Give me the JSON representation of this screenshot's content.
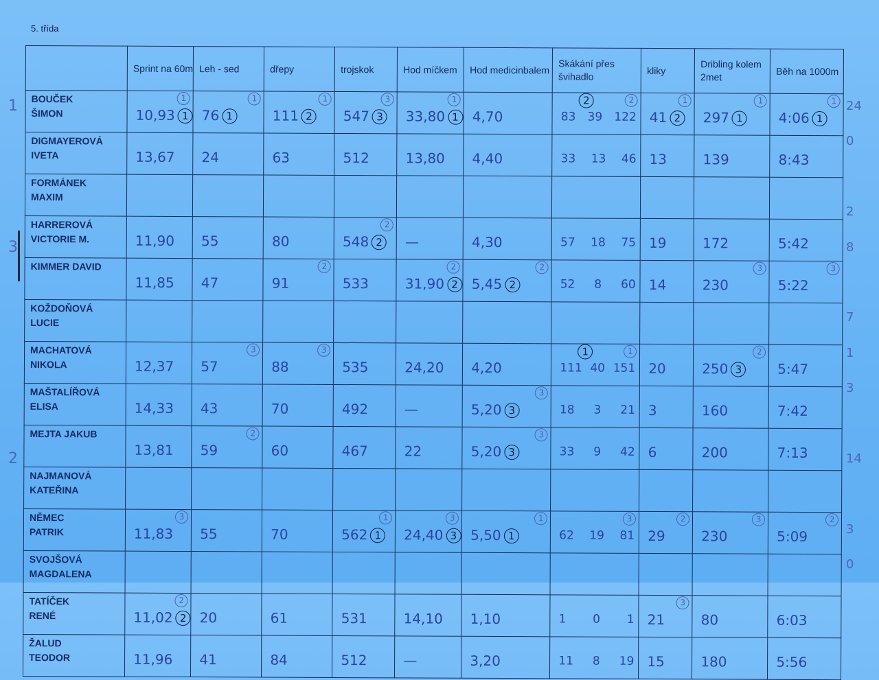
{
  "title": "5. třída",
  "colors": {
    "paper": "#6db8f6",
    "ink": "#2b44a0",
    "grid": "#1b2c5c"
  },
  "headers": [
    "",
    "Sprint na 60m",
    "Leh - sed",
    "dřepy",
    "trojskok",
    "Hod míčkem",
    "Hod medicinbalem",
    "Skákání přes švihadlo",
    "kliky",
    "Dribling kolem 2met",
    "Běh na 1000m"
  ],
  "rows": [
    {
      "name": [
        "BOUČEK",
        "ŠIMON"
      ],
      "side": "1",
      "total": "24",
      "cells": [
        {
          "v": "10,93",
          "c": "1",
          "s": "1"
        },
        {
          "v": "76",
          "c": "1",
          "s": "1"
        },
        {
          "v": "111",
          "c": "2",
          "s": "1"
        },
        {
          "v": "547",
          "c": "3",
          "s": "3"
        },
        {
          "v": "33,80",
          "c": "1",
          "s": "1"
        },
        {
          "v": "4,70"
        },
        {
          "parts": [
            "83",
            "39",
            "122"
          ],
          "c": "2",
          "s": "2"
        },
        {
          "v": "41",
          "c": "2",
          "s": "1"
        },
        {
          "v": "297",
          "c": "1",
          "s": "1"
        },
        {
          "v": "4:06",
          "c": "1",
          "s": "1"
        }
      ]
    },
    {
      "name": [
        "DIGMAYEROVÁ",
        "IVETA"
      ],
      "total": "0",
      "cells": [
        {
          "v": "13,67"
        },
        {
          "v": "24"
        },
        {
          "v": "63"
        },
        {
          "v": "512"
        },
        {
          "v": "13,80"
        },
        {
          "v": "4,40"
        },
        {
          "parts": [
            "33",
            "13",
            "46"
          ]
        },
        {
          "v": "13"
        },
        {
          "v": "139"
        },
        {
          "v": "8:43"
        }
      ]
    },
    {
      "name": [
        "FORMÁNEK",
        "MAXIM"
      ],
      "cells": [
        {},
        {},
        {},
        {},
        {},
        {},
        {},
        {},
        {},
        {}
      ]
    },
    {
      "name": [
        "HARREROVÁ",
        "VICTORIE M."
      ],
      "total": "2",
      "cells": [
        {
          "v": "11,90"
        },
        {
          "v": "55"
        },
        {
          "v": "80"
        },
        {
          "v": "548",
          "c": "2",
          "s": "2"
        },
        {
          "v": "—"
        },
        {
          "v": "4,30"
        },
        {
          "parts": [
            "57",
            "18",
            "75"
          ]
        },
        {
          "v": "19"
        },
        {
          "v": "172"
        },
        {
          "v": "5:42"
        }
      ]
    },
    {
      "name": [
        "KIMMER DAVID",
        ""
      ],
      "side": "3",
      "total": "8",
      "cells": [
        {
          "v": "11,85"
        },
        {
          "v": "47"
        },
        {
          "v": "91",
          "s": "2"
        },
        {
          "v": "533"
        },
        {
          "v": "31,90",
          "c": "2",
          "s": "2"
        },
        {
          "v": "5,45",
          "c": "2",
          "s": "2"
        },
        {
          "parts": [
            "52",
            "8",
            "60"
          ]
        },
        {
          "v": "14"
        },
        {
          "v": "230",
          "s": "3"
        },
        {
          "v": "5:22",
          "s": "3"
        }
      ]
    },
    {
      "name": [
        "KOŽDOŇOVÁ",
        "LUCIE"
      ],
      "cells": [
        {},
        {},
        {},
        {},
        {},
        {},
        {},
        {},
        {},
        {}
      ]
    },
    {
      "name": [
        "MACHATOVÁ",
        "NIKOLA"
      ],
      "total": "7",
      "cells": [
        {
          "v": "12,37"
        },
        {
          "v": "57",
          "s": "3"
        },
        {
          "v": "88",
          "s": "3"
        },
        {
          "v": "535"
        },
        {
          "v": "24,20"
        },
        {
          "v": "4,20"
        },
        {
          "parts": [
            "111",
            "40",
            "151"
          ],
          "c": "1",
          "s": "1"
        },
        {
          "v": "20"
        },
        {
          "v": "250",
          "c": "3",
          "s": "2"
        },
        {
          "v": "5:47"
        }
      ]
    },
    {
      "name": [
        "MAŠTALÍŘOVÁ",
        "ELISA"
      ],
      "total": "1",
      "cells": [
        {
          "v": "14,33"
        },
        {
          "v": "43"
        },
        {
          "v": "70"
        },
        {
          "v": "492"
        },
        {
          "v": "—"
        },
        {
          "v": "5,20",
          "c": "3",
          "s": "3"
        },
        {
          "parts": [
            "18",
            "3",
            "21"
          ]
        },
        {
          "v": "3"
        },
        {
          "v": "160"
        },
        {
          "v": "7:42"
        }
      ]
    },
    {
      "name": [
        "MEJTA JAKUB",
        ""
      ],
      "total": "3",
      "cells": [
        {
          "v": "13,81"
        },
        {
          "v": "59",
          "s": "2"
        },
        {
          "v": "60"
        },
        {
          "v": "467"
        },
        {
          "v": "22"
        },
        {
          "v": "5,20",
          "c": "3",
          "s": "3"
        },
        {
          "parts": [
            "33",
            "9",
            "42"
          ]
        },
        {
          "v": "6"
        },
        {
          "v": "200"
        },
        {
          "v": "7:13"
        }
      ]
    },
    {
      "name": [
        "NAJMANOVÁ",
        "KATEŘINA"
      ],
      "cells": [
        {},
        {},
        {},
        {},
        {},
        {},
        {},
        {},
        {},
        {}
      ]
    },
    {
      "name": [
        "NĚMEC",
        "PATRIK"
      ],
      "side": "2",
      "total": "14",
      "cells": [
        {
          "v": "11,83",
          "s": "3"
        },
        {
          "v": "55"
        },
        {
          "v": "70"
        },
        {
          "v": "562",
          "c": "1",
          "s": "1"
        },
        {
          "v": "24,40",
          "c": "3",
          "s": "3"
        },
        {
          "v": "5,50",
          "c": "1",
          "s": "1"
        },
        {
          "parts": [
            "62",
            "19",
            "81"
          ],
          "s": "3"
        },
        {
          "v": "29",
          "s": "2"
        },
        {
          "v": "230",
          "s": "3"
        },
        {
          "v": "5:09",
          "s": "2"
        }
      ]
    },
    {
      "name": [
        "SVOJŠOVÁ",
        "MAGDALENA"
      ],
      "cells": [
        {},
        {},
        {},
        {},
        {},
        {},
        {},
        {},
        {},
        {}
      ]
    },
    {
      "name": [
        "TATÍČEK",
        "RENÉ"
      ],
      "total": "3",
      "cells": [
        {
          "v": "11,02",
          "c": "2",
          "s": "2"
        },
        {
          "v": "20"
        },
        {
          "v": "61"
        },
        {
          "v": "531"
        },
        {
          "v": "14,10"
        },
        {
          "v": "1,10"
        },
        {
          "parts": [
            "1",
            "0",
            "1"
          ]
        },
        {
          "v": "21",
          "s": "3"
        },
        {
          "v": "80"
        },
        {
          "v": "6:03"
        }
      ]
    },
    {
      "name": [
        "ŽALUD",
        "TEODOR"
      ],
      "total": "0",
      "cells": [
        {
          "v": "11,96"
        },
        {
          "v": "41"
        },
        {
          "v": "84"
        },
        {
          "v": "512"
        },
        {
          "v": "—"
        },
        {
          "v": "3,20"
        },
        {
          "parts": [
            "11",
            "8",
            "19"
          ]
        },
        {
          "v": "15"
        },
        {
          "v": "180"
        },
        {
          "v": "5:56"
        }
      ]
    }
  ]
}
